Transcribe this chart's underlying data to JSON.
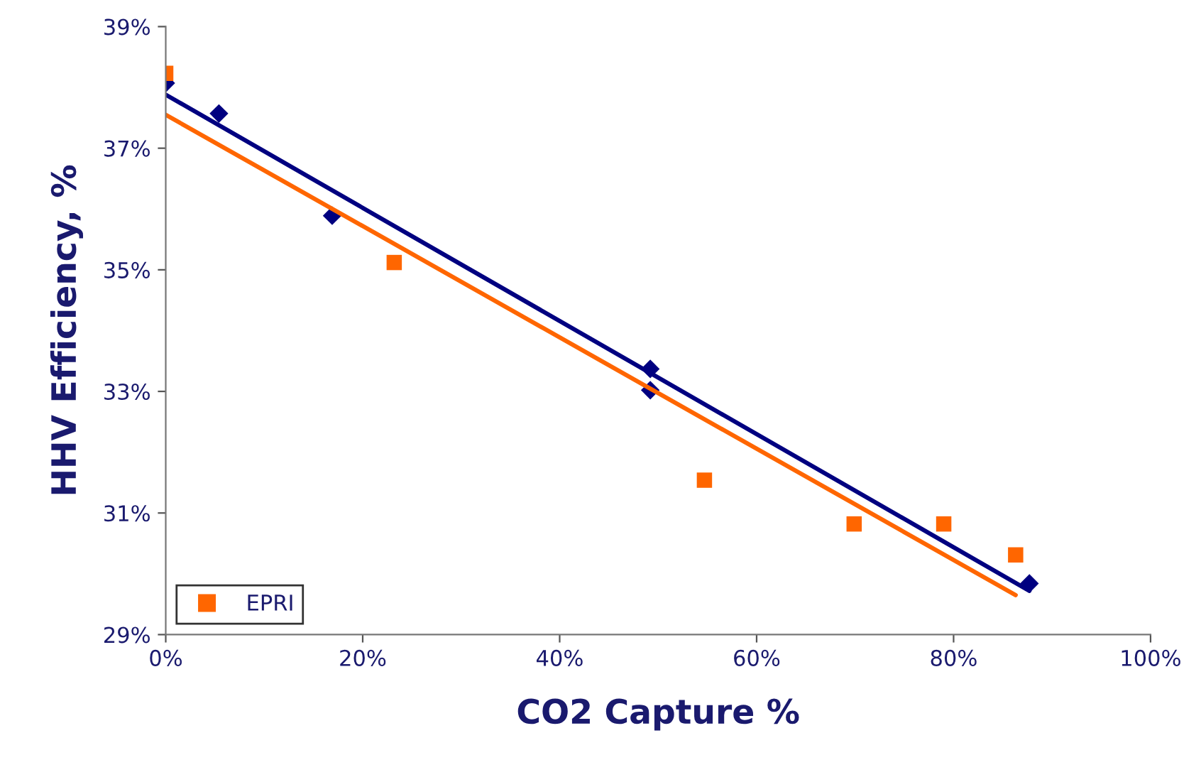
{
  "chart_data": {
    "type": "scatter",
    "xlabel": "CO2 Capture %",
    "ylabel": "HHV Efficiency, %",
    "xlim": [
      0,
      100
    ],
    "ylim": [
      29,
      39
    ],
    "xticks": [
      {
        "value": 0,
        "label": "0%"
      },
      {
        "value": 20,
        "label": "20%"
      },
      {
        "value": 40,
        "label": "40%"
      },
      {
        "value": 60,
        "label": "60%"
      },
      {
        "value": 80,
        "label": "80%"
      },
      {
        "value": 100,
        "label": "100%"
      }
    ],
    "yticks": [
      {
        "value": 29,
        "label": "29%"
      },
      {
        "value": 31,
        "label": "31%"
      },
      {
        "value": 33,
        "label": "33%"
      },
      {
        "value": 35,
        "label": "35%"
      },
      {
        "value": 37,
        "label": "37%"
      },
      {
        "value": 39,
        "label": "39%"
      }
    ],
    "grid": false,
    "legend": "bottom left",
    "series": [
      {
        "marker": "diamond",
        "color": "#000080",
        "x": [
          0,
          5.4,
          16.9,
          49.2,
          49.2,
          87.7
        ],
        "values": [
          38.07,
          37.57,
          35.89,
          33.37,
          33.02,
          29.84
        ]
      },
      {
        "name": "EPRI",
        "marker": "square",
        "color": "#ff6600",
        "x": [
          0,
          23.2,
          54.7,
          69.9,
          79,
          86.3
        ],
        "values": [
          38.23,
          35.12,
          31.54,
          30.82,
          30.82,
          30.31
        ]
      },
      {
        "type": "line",
        "marker": "none",
        "color": "#000080",
        "x": [
          0,
          87.7
        ],
        "values": [
          37.88,
          29.72
        ]
      },
      {
        "type": "line",
        "marker": "none",
        "color": "#ff6600",
        "x": [
          0,
          86.3
        ],
        "values": [
          37.55,
          29.65
        ]
      }
    ]
  }
}
